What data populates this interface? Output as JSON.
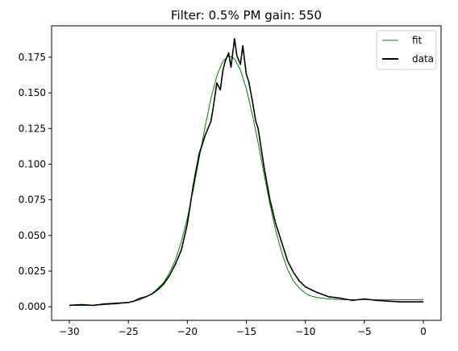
{
  "chart_data": {
    "type": "line",
    "title": "Filter: 0.5% PM gain: 550",
    "xlabel": "",
    "ylabel": "",
    "xlim": [
      -31.5,
      1.5
    ],
    "ylim": [
      -0.0095,
      0.197
    ],
    "xticks": [
      -30,
      -25,
      -20,
      -15,
      -10,
      -5,
      0
    ],
    "xtick_labels": [
      "−30",
      "−25",
      "−20",
      "−15",
      "−10",
      "−5",
      "0"
    ],
    "yticks": [
      0.0,
      0.025,
      0.05,
      0.075,
      0.1,
      0.125,
      0.15,
      0.175
    ],
    "ytick_labels": [
      "0.000",
      "0.025",
      "0.050",
      "0.075",
      "0.100",
      "0.125",
      "0.150",
      "0.175"
    ],
    "grid": false,
    "legend_position": "top-right",
    "series": [
      {
        "name": "fit",
        "color": "#008000",
        "x": [
          -30,
          -29,
          -28,
          -27,
          -26,
          -25,
          -24,
          -23,
          -22,
          -21.5,
          -21,
          -20.5,
          -20,
          -19.5,
          -19,
          -18.5,
          -18,
          -17.5,
          -17,
          -16.5,
          -16,
          -15.5,
          -15,
          -14.5,
          -14,
          -13.5,
          -13,
          -12.5,
          -12,
          -11.5,
          -11,
          -10.5,
          -10,
          -9.5,
          -9,
          -8,
          -7,
          -6,
          -5,
          -4,
          -3,
          -2,
          -1,
          0
        ],
        "y": [
          0.001,
          0.001,
          0.001,
          0.0015,
          0.002,
          0.003,
          0.005,
          0.009,
          0.017,
          0.024,
          0.033,
          0.046,
          0.062,
          0.082,
          0.104,
          0.126,
          0.146,
          0.162,
          0.172,
          0.176,
          0.174,
          0.166,
          0.153,
          0.135,
          0.115,
          0.093,
          0.072,
          0.053,
          0.038,
          0.026,
          0.018,
          0.013,
          0.0095,
          0.0075,
          0.0065,
          0.0055,
          0.005,
          0.005,
          0.005,
          0.005,
          0.005,
          0.005,
          0.005,
          0.005
        ]
      },
      {
        "name": "data",
        "color": "#000000",
        "x": [
          -30,
          -29,
          -28,
          -27,
          -26,
          -25,
          -24.5,
          -24,
          -23.5,
          -23,
          -22.5,
          -22,
          -21.5,
          -21,
          -20.5,
          -20,
          -19.5,
          -19,
          -18.5,
          -18,
          -17.8,
          -17.5,
          -17.2,
          -17,
          -16.8,
          -16.5,
          -16.3,
          -16,
          -15.8,
          -15.5,
          -15.3,
          -15,
          -14.8,
          -14.5,
          -14.2,
          -14,
          -13.5,
          -13,
          -12.5,
          -12,
          -11.5,
          -11,
          -10.5,
          -10,
          -9.5,
          -9,
          -8,
          -7,
          -6,
          -5,
          -4,
          -3,
          -2,
          -1,
          0
        ],
        "y": [
          0.001,
          0.0015,
          0.001,
          0.002,
          0.0025,
          0.003,
          0.004,
          0.006,
          0.007,
          0.009,
          0.012,
          0.016,
          0.022,
          0.03,
          0.04,
          0.058,
          0.085,
          0.107,
          0.12,
          0.13,
          0.14,
          0.157,
          0.152,
          0.165,
          0.172,
          0.178,
          0.168,
          0.188,
          0.176,
          0.17,
          0.183,
          0.163,
          0.158,
          0.145,
          0.13,
          0.125,
          0.098,
          0.075,
          0.058,
          0.045,
          0.032,
          0.024,
          0.018,
          0.014,
          0.012,
          0.01,
          0.007,
          0.006,
          0.0045,
          0.0055,
          0.0045,
          0.004,
          0.0035,
          0.0035,
          0.0035
        ]
      }
    ]
  }
}
